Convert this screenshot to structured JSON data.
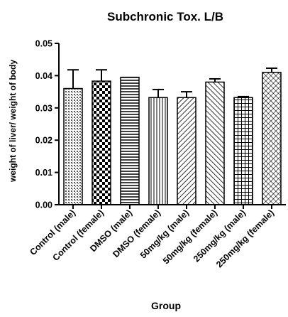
{
  "chart_data": {
    "type": "bar",
    "title": "Subchronic Tox. L/B",
    "xlabel": "Group",
    "ylabel": "weight of liver/ weight of body",
    "ylim": [
      0,
      0.05
    ],
    "yticks": [
      "0.00",
      "0.01",
      "0.02",
      "0.03",
      "0.04",
      "0.05"
    ],
    "ytick_values": [
      0,
      0.01,
      0.02,
      0.03,
      0.04,
      0.05
    ],
    "categories": [
      "Control (male)",
      "Control (female)",
      "DMSO (male)",
      "DMSO (female)",
      "50mg/kg (male)",
      "50mg/kg (female)",
      "250mg/kg (male)",
      "250mg/kg (female)"
    ],
    "values": [
      0.036,
      0.0383,
      0.0395,
      0.0332,
      0.0332,
      0.038,
      0.0332,
      0.041
    ],
    "error_upper": [
      0.0058,
      0.0035,
      0,
      0.0025,
      0.0018,
      0.001,
      0.0003,
      0.0013
    ],
    "patterns": [
      "dots",
      "checker",
      "hlines",
      "vlines",
      "diag-left",
      "diag-right",
      "grid",
      "crosshatch"
    ],
    "grid": false,
    "legend": "none"
  }
}
